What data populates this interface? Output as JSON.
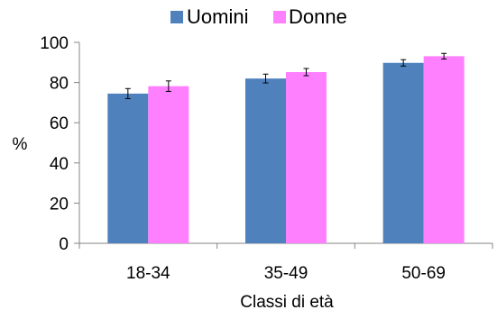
{
  "chart_data": {
    "type": "bar",
    "categories": [
      "18-34",
      "35-49",
      "50-69"
    ],
    "series": [
      {
        "name": "Uomini",
        "color": "#4F81BD",
        "values": [
          74.5,
          82,
          89.8
        ],
        "error": [
          2.5,
          2.2,
          1.6
        ]
      },
      {
        "name": "Donne",
        "color": "#FF80FF",
        "values": [
          78.2,
          85.2,
          93.1
        ],
        "error": [
          2.6,
          1.8,
          1.4
        ]
      }
    ],
    "xlabel": "Classi di età",
    "ylabel": "%",
    "ylim": [
      0,
      100
    ],
    "yticks": [
      "0",
      "20",
      "40",
      "60",
      "80",
      "100"
    ],
    "grid": false,
    "legend_position": "top"
  }
}
